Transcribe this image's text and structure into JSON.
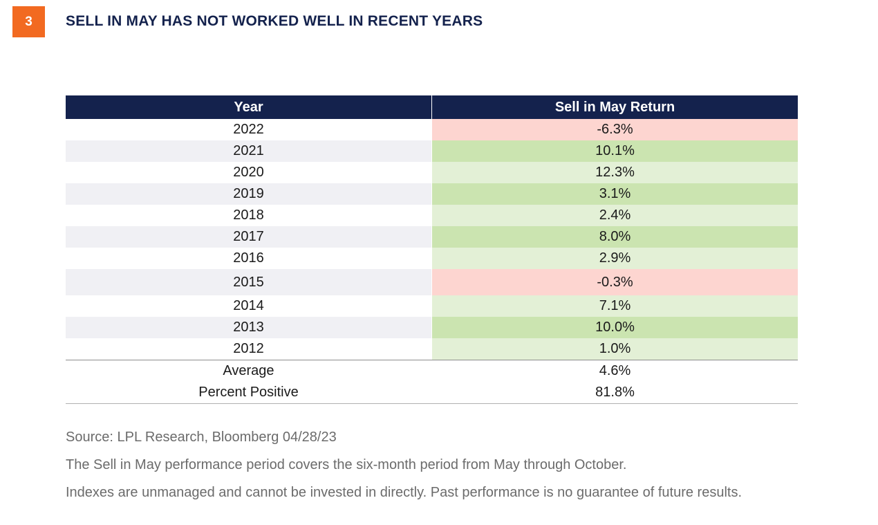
{
  "figure": {
    "number": "3",
    "title": "SELL IN MAY HAS NOT WORKED WELL IN RECENT YEARS"
  },
  "table": {
    "headers": [
      "Year",
      "Sell in May Return"
    ],
    "rows": [
      {
        "year": "2022",
        "ret": "-6.3%",
        "tone": "neg"
      },
      {
        "year": "2021",
        "ret": "10.1%",
        "tone": "pos-strong"
      },
      {
        "year": "2020",
        "ret": "12.3%",
        "tone": "pos-light"
      },
      {
        "year": "2019",
        "ret": "3.1%",
        "tone": "pos-strong"
      },
      {
        "year": "2018",
        "ret": "2.4%",
        "tone": "pos-light"
      },
      {
        "year": "2017",
        "ret": "8.0%",
        "tone": "pos-strong"
      },
      {
        "year": "2016",
        "ret": "2.9%",
        "tone": "pos-light"
      },
      {
        "year": "2015",
        "ret": "-0.3%",
        "tone": "neg"
      },
      {
        "year": "2014",
        "ret": "7.1%",
        "tone": "pos-light"
      },
      {
        "year": "2013",
        "ret": "10.0%",
        "tone": "pos-strong"
      },
      {
        "year": "2012",
        "ret": "1.0%",
        "tone": "pos-light"
      }
    ],
    "summary": [
      {
        "label": "Average",
        "value": "4.6%"
      },
      {
        "label": "Percent Positive",
        "value": "81.8%"
      }
    ]
  },
  "notes": {
    "source": "Source: LPL Research, Bloomberg  04/28/23",
    "line1": "The Sell in May performance period covers the six-month period from May through October.",
    "line2": "Indexes are unmanaged and cannot be invested in directly. Past performance is no guarantee of future results."
  },
  "colors": {
    "header_bg": "#14224d",
    "badge_bg": "#f26a21",
    "negative_fill": "#fdd5d0",
    "positive_strong_fill": "#cbe4b0",
    "positive_light_fill": "#e3f0d6"
  }
}
